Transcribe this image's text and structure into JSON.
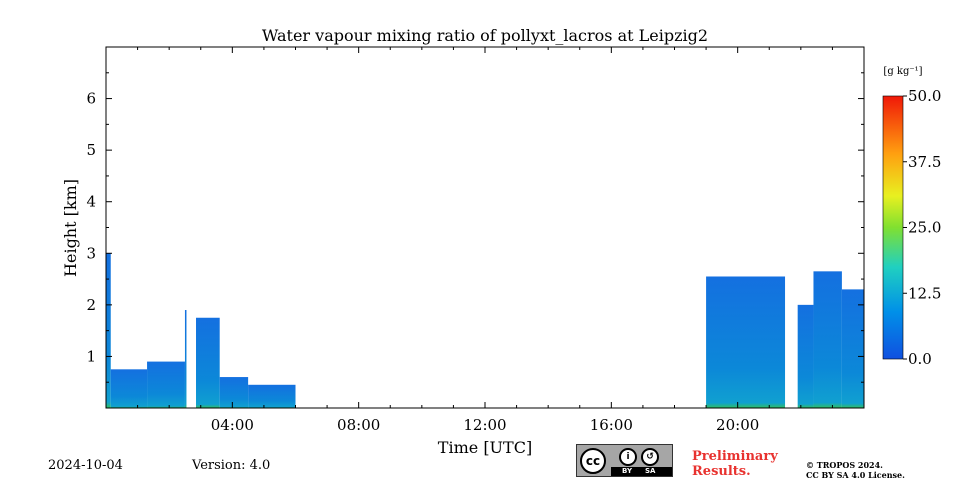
{
  "chart_data": {
    "type": "heatmap",
    "title": "Water vapour mixing ratio of pollyxt_lacros at Leipzig2",
    "xlabel": "Time [UTC]",
    "ylabel": "Height [km]",
    "xlim": [
      0,
      24
    ],
    "ylim": [
      0,
      7
    ],
    "x_ticks": [
      {
        "value": 4,
        "label": "04:00"
      },
      {
        "value": 8,
        "label": "08:00"
      },
      {
        "value": 12,
        "label": "12:00"
      },
      {
        "value": 16,
        "label": "16:00"
      },
      {
        "value": 20,
        "label": "20:00"
      }
    ],
    "y_ticks": [
      {
        "value": 1,
        "label": "1"
      },
      {
        "value": 2,
        "label": "2"
      },
      {
        "value": 3,
        "label": "3"
      },
      {
        "value": 4,
        "label": "4"
      },
      {
        "value": 5,
        "label": "5"
      },
      {
        "value": 6,
        "label": "6"
      }
    ],
    "colorbar": {
      "unit": "[g kg⁻¹]",
      "min": 0.0,
      "max": 50.0,
      "ticks": [
        "0.0",
        "12.5",
        "25.0",
        "37.5",
        "50.0"
      ],
      "colormap": "jet"
    },
    "segments": [
      {
        "start": 0.0,
        "end": 0.15,
        "top_km": 3.0
      },
      {
        "start": 0.15,
        "end": 1.3,
        "top_km": 0.75
      },
      {
        "start": 1.3,
        "end": 2.5,
        "top_km": 0.9
      },
      {
        "start": 2.5,
        "end": 2.5,
        "top_km": 1.9
      },
      {
        "start": 2.85,
        "end": 3.6,
        "top_km": 1.75
      },
      {
        "start": 3.6,
        "end": 4.5,
        "top_km": 0.6
      },
      {
        "start": 4.5,
        "end": 6.0,
        "top_km": 0.45
      },
      {
        "start": 19.0,
        "end": 21.5,
        "top_km": 2.55
      },
      {
        "start": 21.9,
        "end": 22.4,
        "top_km": 2.0
      },
      {
        "start": 22.4,
        "end": 23.3,
        "top_km": 2.65
      },
      {
        "start": 23.3,
        "end": 24.0,
        "top_km": 2.3
      }
    ],
    "value_range_g_per_kg": [
      3,
      12
    ]
  },
  "footer": {
    "date": "2024-10-04",
    "version": "Version: 4.0",
    "license_badge": [
      "BY",
      "SA"
    ],
    "preliminary": [
      "Preliminary",
      "Results."
    ],
    "copyright": [
      "© TROPOS 2024.",
      "CC BY SA 4.0 License."
    ]
  }
}
